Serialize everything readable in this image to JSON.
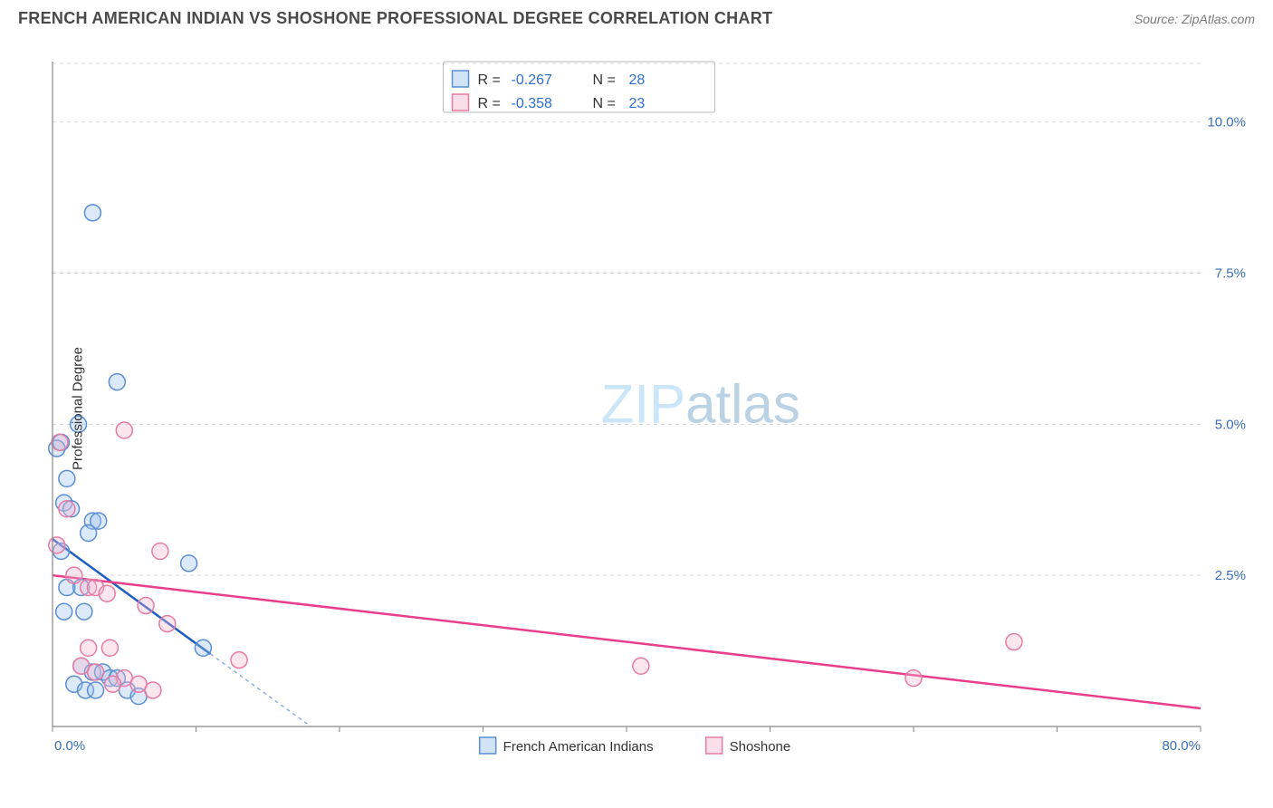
{
  "title": "FRENCH AMERICAN INDIAN VS SHOSHONE PROFESSIONAL DEGREE CORRELATION CHART",
  "source": "Source: ZipAtlas.com",
  "ylabel": "Professional Degree",
  "watermark_a": "ZIP",
  "watermark_b": "atlas",
  "chart": {
    "type": "scatter",
    "background_color": "#ffffff",
    "grid_color": "#d8d8d8",
    "axis_color": "#888888",
    "xlim": [
      0,
      80
    ],
    "ylim": [
      0,
      11
    ],
    "xticks": [
      0,
      10,
      20,
      30,
      40,
      50,
      60,
      70,
      80
    ],
    "xtick_labels": {
      "0": "0.0%",
      "80": "80.0%"
    },
    "yticks": [
      2.5,
      5.0,
      7.5,
      10.0
    ],
    "ytick_labels": [
      "2.5%",
      "5.0%",
      "7.5%",
      "10.0%"
    ],
    "tick_label_color": "#3b6fb6",
    "tick_label_fontsize": 15,
    "marker_radius": 9,
    "marker_fill_opacity": 0.35,
    "series": [
      {
        "name": "French American Indians",
        "color_stroke": "#5a8fd6",
        "color_fill": "#9bc1ec",
        "trend_color": "#1f5fc4",
        "R": "-0.267",
        "N": "28",
        "trend_line": {
          "x1": 0,
          "y1": 3.1,
          "x2": 11,
          "y2": 1.2
        },
        "trend_dash": {
          "x1": 11,
          "y1": 1.2,
          "x2": 18,
          "y2": 0
        },
        "points": [
          [
            2.8,
            8.5
          ],
          [
            4.5,
            5.7
          ],
          [
            1.8,
            5.0
          ],
          [
            0.6,
            4.7
          ],
          [
            0.3,
            4.6
          ],
          [
            1.0,
            4.1
          ],
          [
            0.8,
            3.7
          ],
          [
            1.3,
            3.6
          ],
          [
            2.8,
            3.4
          ],
          [
            3.2,
            3.4
          ],
          [
            2.5,
            3.2
          ],
          [
            0.6,
            2.9
          ],
          [
            9.5,
            2.7
          ],
          [
            1.0,
            2.3
          ],
          [
            2.0,
            2.3
          ],
          [
            0.8,
            1.9
          ],
          [
            2.2,
            1.9
          ],
          [
            10.5,
            1.3
          ],
          [
            2.0,
            1.0
          ],
          [
            2.8,
            0.9
          ],
          [
            3.5,
            0.9
          ],
          [
            4.0,
            0.8
          ],
          [
            4.5,
            0.8
          ],
          [
            1.5,
            0.7
          ],
          [
            2.3,
            0.6
          ],
          [
            3.0,
            0.6
          ],
          [
            5.2,
            0.6
          ],
          [
            6.0,
            0.5
          ]
        ]
      },
      {
        "name": "Shoshone",
        "color_stroke": "#e77ba4",
        "color_fill": "#f4b8ce",
        "trend_color": "#e83e8c",
        "R": "-0.358",
        "N": "23",
        "trend_line": {
          "x1": 0,
          "y1": 2.5,
          "x2": 80,
          "y2": 0.3
        },
        "points": [
          [
            0.5,
            4.7
          ],
          [
            5.0,
            4.9
          ],
          [
            1.0,
            3.6
          ],
          [
            0.3,
            3.0
          ],
          [
            7.5,
            2.9
          ],
          [
            1.5,
            2.5
          ],
          [
            2.5,
            2.3
          ],
          [
            3.0,
            2.3
          ],
          [
            3.8,
            2.2
          ],
          [
            6.5,
            2.0
          ],
          [
            8.0,
            1.7
          ],
          [
            2.5,
            1.3
          ],
          [
            4.0,
            1.3
          ],
          [
            13.0,
            1.1
          ],
          [
            2.0,
            1.0
          ],
          [
            3.0,
            0.9
          ],
          [
            5.0,
            0.8
          ],
          [
            6.0,
            0.7
          ],
          [
            4.2,
            0.7
          ],
          [
            7.0,
            0.6
          ],
          [
            41.0,
            1.0
          ],
          [
            60.0,
            0.8
          ],
          [
            67.0,
            1.4
          ]
        ]
      }
    ]
  },
  "stats_legend": {
    "R_label": "R =",
    "N_label": "N ="
  },
  "bottom_legend": [
    {
      "label": "French American Indians",
      "stroke": "#5a8fd6",
      "fill": "#9bc1ec"
    },
    {
      "label": "Shoshone",
      "stroke": "#e77ba4",
      "fill": "#f4b8ce"
    }
  ]
}
